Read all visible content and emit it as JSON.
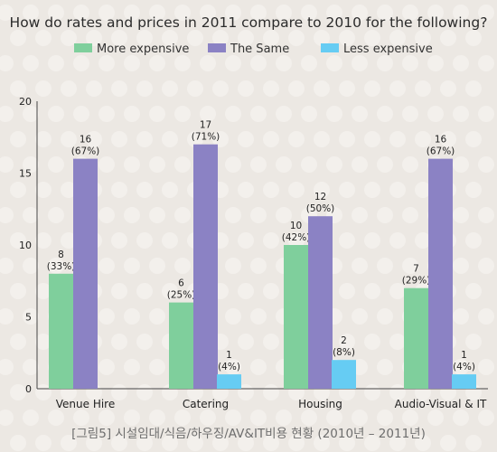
{
  "chart_data": {
    "type": "bar",
    "title": "How do rates and prices in 2011 compare to 2010 for the following?",
    "categories": [
      "Venue Hire",
      "Catering",
      "Housing",
      "Audio-Visual & IT"
    ],
    "series": [
      {
        "name": "More expensive",
        "color": "#7fcf9c",
        "values": [
          8,
          6,
          10,
          7
        ],
        "labels": [
          "8",
          "6",
          "10",
          "7"
        ],
        "pct": [
          "(33%)",
          "(25%)",
          "(42%)",
          "(29%)"
        ]
      },
      {
        "name": "The Same",
        "color": "#8b82c4",
        "values": [
          16,
          17,
          12,
          16
        ],
        "labels": [
          "16",
          "17",
          "12",
          "16"
        ],
        "pct": [
          "(67%)",
          "(71%)",
          "(50%)",
          "(67%)"
        ]
      },
      {
        "name": "Less expensive",
        "color": "#66ccf3",
        "values": [
          0,
          1,
          2,
          1
        ],
        "labels": [
          "",
          "1",
          "2",
          "1"
        ],
        "pct": [
          "",
          "(4%)",
          "(8%)",
          "(4%)"
        ]
      }
    ],
    "ylim": [
      0,
      20
    ],
    "yticks": [
      "0",
      "5",
      "10",
      "15",
      "20"
    ],
    "grid": false,
    "legend": "top",
    "caption": "[그림5] 시설임대/식음/하우징/AV&IT비용 현황 (2010년 – 2011년)"
  }
}
